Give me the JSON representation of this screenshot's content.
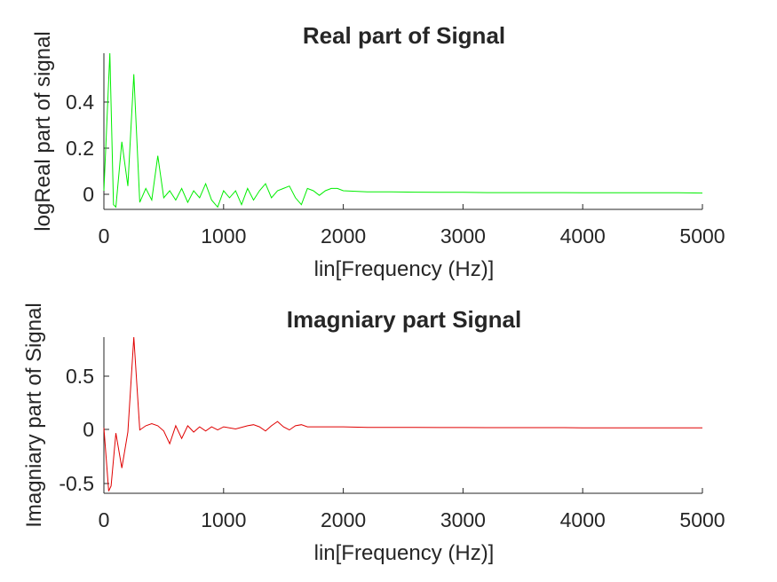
{
  "chart_data": [
    {
      "type": "line",
      "title": "Real part of Signal",
      "xlabel": "lin[Frequency (Hz)]",
      "ylabel": "logReal part of signal",
      "xlim": [
        0,
        5000
      ],
      "ylim": [
        -0.07,
        0.6
      ],
      "xticks": [
        "0",
        "1000",
        "2000",
        "3000",
        "4000",
        "5000"
      ],
      "yticks": [
        "0",
        "0.2",
        "0.4"
      ],
      "color": "#00ee00",
      "grid": false,
      "series": [
        {
          "x": [
            0,
            50,
            80,
            100,
            150,
            200,
            250,
            300,
            350,
            400,
            450,
            500,
            550,
            600,
            650,
            700,
            750,
            800,
            850,
            900,
            950,
            1000,
            1050,
            1100,
            1150,
            1200,
            1250,
            1300,
            1350,
            1400,
            1450,
            1500,
            1550,
            1600,
            1650,
            1700,
            1750,
            1800,
            1850,
            1900,
            1950,
            2000,
            2200,
            2400,
            2600,
            2800,
            3000,
            3200,
            3400,
            3600,
            3800,
            4000,
            4200,
            4400,
            4600,
            4800,
            5000
          ],
          "values": [
            0.01,
            0.6,
            -0.05,
            -0.06,
            0.22,
            0.03,
            0.51,
            -0.04,
            0.02,
            -0.03,
            0.16,
            -0.02,
            0.01,
            -0.03,
            0.02,
            -0.04,
            0.01,
            -0.02,
            0.04,
            -0.03,
            -0.06,
            0.01,
            -0.02,
            0.01,
            -0.05,
            0.02,
            -0.03,
            0.01,
            0.04,
            -0.02,
            0.01,
            0.02,
            0.03,
            -0.02,
            -0.05,
            0.02,
            0.01,
            -0.01,
            0.01,
            0.02,
            0.02,
            0.01,
            0.005,
            0.005,
            0.004,
            0.003,
            0.003,
            0.002,
            0.002,
            0.002,
            0.002,
            0.001,
            0.001,
            0.001,
            0.001,
            0.001,
            0.0
          ]
        }
      ]
    },
    {
      "type": "line",
      "title": "Imagniary part Signal",
      "xlabel": "lin[Frequency (Hz)]",
      "ylabel": "Imagniary part of Signal",
      "xlim": [
        0,
        5000
      ],
      "ylim": [
        -0.62,
        0.86
      ],
      "xticks": [
        "0",
        "1000",
        "2000",
        "3000",
        "4000",
        "5000"
      ],
      "yticks": [
        "-0.5",
        "0",
        "0.5"
      ],
      "color": "#e00000",
      "grid": false,
      "series": [
        {
          "x": [
            0,
            40,
            60,
            100,
            150,
            200,
            250,
            300,
            350,
            400,
            450,
            500,
            550,
            600,
            650,
            700,
            750,
            800,
            850,
            900,
            950,
            1000,
            1100,
            1200,
            1250,
            1300,
            1350,
            1400,
            1450,
            1500,
            1550,
            1600,
            1650,
            1700,
            1800,
            2000,
            2200,
            2400,
            2600,
            2800,
            3000,
            3200,
            3400,
            3600,
            3800,
            4000,
            4200,
            4400,
            4600,
            4800,
            5000
          ],
          "values": [
            0.0,
            -0.6,
            -0.55,
            -0.05,
            -0.38,
            -0.04,
            0.86,
            -0.02,
            0.02,
            0.04,
            0.02,
            -0.03,
            -0.15,
            0.02,
            -0.1,
            0.02,
            -0.04,
            0.01,
            -0.03,
            0.01,
            -0.02,
            0.01,
            -0.01,
            0.02,
            0.03,
            0.01,
            -0.03,
            0.02,
            0.06,
            0.01,
            -0.02,
            0.02,
            0.03,
            0.01,
            0.01,
            0.01,
            0.005,
            0.005,
            0.004,
            0.003,
            0.003,
            0.002,
            0.002,
            0.002,
            0.002,
            0.001,
            0.001,
            0.001,
            0.001,
            0.001,
            0.0
          ]
        }
      ]
    }
  ]
}
